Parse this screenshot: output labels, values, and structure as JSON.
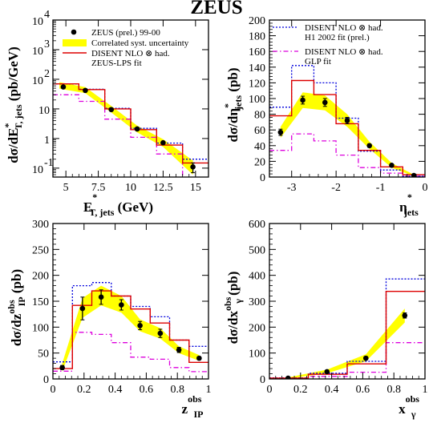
{
  "title": "ZEUS",
  "colors": {
    "data": "#000000",
    "band": "#ffff00",
    "lps": "#dd0000",
    "h1": "#0000dd",
    "glp": "#dd00dd"
  },
  "legend_a": [
    {
      "key": "data",
      "label": "ZEUS (prel.) 99-00"
    },
    {
      "key": "band",
      "label": "Correlated syst. uncertainty"
    },
    {
      "key": "lps",
      "label": "DISENT NLO ⊗ had."
    },
    {
      "key": "lps_note",
      "label": "ZEUS-LPS fit"
    }
  ],
  "legend_b": [
    {
      "key": "h1",
      "label": "DISENT NLO ⊗ had."
    },
    {
      "key": "h1_note",
      "label": "H1 2002 fit (prel.)"
    },
    {
      "key": "glp",
      "label": "DISENT NLO ⊗ had."
    },
    {
      "key": "glp_note",
      "label": "GLP fit"
    }
  ],
  "chart_data": [
    {
      "id": "et",
      "type": "line",
      "title": "ZEUS",
      "ylabel_main": "dσ/dE",
      "ylabel_sup": "*",
      "ylabel_sub": "T, jets",
      "ylabel_unit": " (pb/GeV)",
      "xlabel_main": "E",
      "xlabel_sup": "*",
      "xlabel_sub": "T, jets",
      "xlabel_unit": " (GeV)",
      "xlim": [
        4,
        16
      ],
      "ylim": [
        0.05,
        10000
      ],
      "yscale": "log",
      "xticks": [
        {
          "v": 5,
          "t": "5"
        },
        {
          "v": 7.5,
          "t": "7.5"
        },
        {
          "v": 10,
          "t": "10"
        },
        {
          "v": 12.5,
          "t": "12.5"
        },
        {
          "v": 15,
          "t": "15"
        }
      ],
      "yticks": [
        {
          "v": 10000,
          "base": "10",
          "exp": "4"
        },
        {
          "v": 1000,
          "base": "10",
          "exp": "3"
        },
        {
          "v": 100,
          "base": "10",
          "exp": "2"
        },
        {
          "v": 10,
          "base": "10",
          "exp": ""
        },
        {
          "v": 1,
          "base": "1",
          "exp": ""
        },
        {
          "v": 0.1,
          "base": "10",
          "exp": "-1"
        }
      ],
      "edges": [
        4,
        6,
        8,
        10,
        12,
        14,
        16
      ],
      "data": {
        "x": [
          4.8,
          6.5,
          8.5,
          10.5,
          12.5,
          14.8
        ],
        "y": [
          55,
          42,
          9.5,
          2.1,
          0.72,
          0.11
        ],
        "err": [
          0,
          0,
          0,
          0,
          0,
          0.04
        ]
      },
      "band": {
        "x": [
          4.5,
          6.5,
          8.5,
          10.5,
          12.5,
          14.8
        ],
        "lo": [
          48,
          34,
          7.5,
          1.6,
          0.52,
          0.06
        ],
        "hi": [
          80,
          54,
          12.5,
          2.7,
          0.95,
          0.18
        ]
      },
      "lps": [
        70,
        45,
        10,
        2,
        0.6,
        0.15
      ],
      "h1": [
        70,
        46,
        10.5,
        2.2,
        0.7,
        0.2
      ],
      "glp": [
        30,
        18,
        4.5,
        1.1,
        0.3,
        0.03
      ]
    },
    {
      "id": "eta",
      "type": "line",
      "ylabel_main": "dσ/dη",
      "ylabel_sup": "*",
      "ylabel_sub": "jets",
      "ylabel_unit": " (pb)",
      "xlabel_main": "η",
      "xlabel_sup": "*",
      "xlabel_sub": "jets",
      "xlabel_unit": "",
      "xlim": [
        -3.5,
        0
      ],
      "ylim": [
        0,
        200
      ],
      "yscale": "linear",
      "xticks": [
        {
          "v": -3,
          "t": "-3"
        },
        {
          "v": -2,
          "t": "-2"
        },
        {
          "v": -1,
          "t": "-1"
        },
        {
          "v": 0,
          "t": "0"
        }
      ],
      "yticks": [
        {
          "v": 0,
          "t": "0"
        },
        {
          "v": 20,
          "t": "20"
        },
        {
          "v": 40,
          "t": "40"
        },
        {
          "v": 60,
          "t": "60"
        },
        {
          "v": 80,
          "t": "80"
        },
        {
          "v": 100,
          "t": "100"
        },
        {
          "v": 120,
          "t": "120"
        },
        {
          "v": 140,
          "t": "140"
        },
        {
          "v": 160,
          "t": "160"
        },
        {
          "v": 180,
          "t": "180"
        },
        {
          "v": 200,
          "t": "200"
        }
      ],
      "edges": [
        -3.5,
        -3.0,
        -2.5,
        -2.0,
        -1.5,
        -1.0,
        -0.5,
        0
      ],
      "data": {
        "x": [
          -3.25,
          -2.75,
          -2.25,
          -1.75,
          -1.25,
          -0.75,
          -0.25
        ],
        "y": [
          57,
          98,
          95,
          72,
          40,
          15,
          2
        ],
        "err": [
          4,
          5,
          5,
          4,
          2,
          1,
          0.5
        ]
      },
      "band": {
        "x": [
          -3.25,
          -2.75,
          -2.25,
          -1.75,
          -1.25,
          -0.75,
          -0.25
        ],
        "lo": [
          50,
          88,
          85,
          64,
          36,
          12,
          1
        ],
        "hi": [
          64,
          108,
          104,
          80,
          45,
          18,
          3
        ]
      },
      "lps": [
        78,
        123,
        105,
        68,
        34,
        13,
        3
      ],
      "h1": [
        89,
        142,
        120,
        75,
        33,
        9,
        1
      ],
      "glp": [
        34,
        55,
        46,
        28,
        12,
        5,
        1
      ]
    },
    {
      "id": "zip",
      "type": "line",
      "ylabel_main": "dσ/dz",
      "ylabel_sup": "obs",
      "ylabel_sub": "IP",
      "ylabel_unit": " (pb)",
      "xlabel_main": "z",
      "xlabel_sup": "obs",
      "xlabel_sub": "IP",
      "xlabel_unit": "",
      "xlim": [
        0,
        1
      ],
      "ylim": [
        0,
        300
      ],
      "yscale": "linear",
      "xticks": [
        {
          "v": 0,
          "t": "0"
        },
        {
          "v": 0.2,
          "t": "0.2"
        },
        {
          "v": 0.4,
          "t": "0.4"
        },
        {
          "v": 0.6,
          "t": "0.6"
        },
        {
          "v": 0.8,
          "t": "0.8"
        },
        {
          "v": 1,
          "t": "1"
        }
      ],
      "yticks": [
        {
          "v": 0,
          "t": "0"
        },
        {
          "v": 50,
          "t": "50"
        },
        {
          "v": 100,
          "t": "100"
        },
        {
          "v": 150,
          "t": "150"
        },
        {
          "v": 200,
          "t": "200"
        },
        {
          "v": 250,
          "t": "250"
        },
        {
          "v": 300,
          "t": "300"
        }
      ],
      "edges": [
        0,
        0.125,
        0.25,
        0.375,
        0.5,
        0.625,
        0.75,
        0.875,
        1
      ],
      "data": {
        "x": [
          0.06,
          0.19,
          0.31,
          0.44,
          0.56,
          0.69,
          0.81,
          0.94
        ],
        "y": [
          22,
          136,
          158,
          143,
          103,
          88,
          56,
          40
        ],
        "err": [
          4,
          22,
          14,
          10,
          8,
          8,
          5,
          3
        ]
      },
      "band": {
        "x": [
          0.06,
          0.19,
          0.31,
          0.44,
          0.56,
          0.69,
          0.81,
          0.94
        ],
        "lo": [
          14,
          118,
          142,
          128,
          92,
          78,
          50,
          35
        ],
        "hi": [
          30,
          156,
          180,
          160,
          115,
          98,
          63,
          46
        ]
      },
      "lps": [
        20,
        142,
        170,
        160,
        135,
        108,
        75,
        32
      ],
      "h1": [
        33,
        180,
        186,
        160,
        140,
        120,
        75,
        63
      ],
      "glp": [
        15,
        90,
        86,
        70,
        42,
        38,
        22,
        14
      ]
    },
    {
      "id": "xg",
      "type": "line",
      "ylabel_main": "dσ/dx",
      "ylabel_sup": "obs",
      "ylabel_sub": "γ",
      "ylabel_unit": " (pb)",
      "xlabel_main": "x",
      "xlabel_sup": "obs",
      "xlabel_sub": "γ",
      "xlabel_unit": "",
      "xlim": [
        0,
        1
      ],
      "ylim": [
        0,
        600
      ],
      "yscale": "linear",
      "xticks": [
        {
          "v": 0,
          "t": "0"
        },
        {
          "v": 0.2,
          "t": "0.2"
        },
        {
          "v": 0.4,
          "t": "0.4"
        },
        {
          "v": 0.6,
          "t": "0.6"
        },
        {
          "v": 0.8,
          "t": "0.8"
        },
        {
          "v": 1,
          "t": "1"
        }
      ],
      "yticks": [
        {
          "v": 0,
          "t": "0"
        },
        {
          "v": 100,
          "t": "100"
        },
        {
          "v": 200,
          "t": "200"
        },
        {
          "v": 300,
          "t": "300"
        },
        {
          "v": 400,
          "t": "400"
        },
        {
          "v": 500,
          "t": "500"
        },
        {
          "v": 600,
          "t": "600"
        }
      ],
      "edges": [
        0,
        0.25,
        0.5,
        0.75,
        1
      ],
      "data": {
        "x": [
          0.12,
          0.37,
          0.62,
          0.87
        ],
        "y": [
          3,
          28,
          80,
          245
        ],
        "err": [
          1,
          3,
          6,
          10
        ]
      },
      "band": {
        "x": [
          0.12,
          0.37,
          0.62,
          0.87
        ],
        "lo": [
          1,
          22,
          68,
          218
        ],
        "hi": [
          6,
          36,
          95,
          272
        ]
      },
      "lps": [
        3,
        18,
        58,
        338
      ],
      "h1": [
        4,
        22,
        68,
        386
      ],
      "glp": [
        1,
        10,
        26,
        140
      ]
    }
  ]
}
